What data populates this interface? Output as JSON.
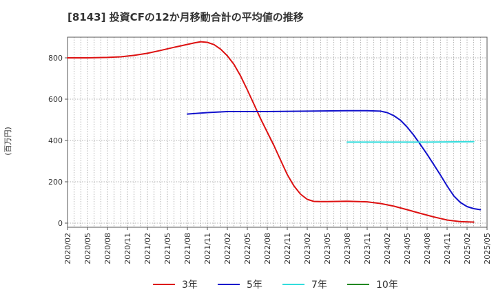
{
  "chart_data": {
    "type": "line",
    "title": "[8143]  投資CFの12か月移動合計の平均値の推移",
    "ylabel": "(百万円)",
    "xlabel": "",
    "ylim": [
      -20,
      900
    ],
    "yticks": [
      0,
      200,
      400,
      600,
      800
    ],
    "x_ticks": [
      "2020/02",
      "2020/05",
      "2020/08",
      "2020/11",
      "2021/02",
      "2021/05",
      "2021/08",
      "2021/11",
      "2022/02",
      "2022/05",
      "2022/08",
      "2022/11",
      "2023/02",
      "2023/05",
      "2023/08",
      "2023/11",
      "2024/02",
      "2024/05",
      "2024/08",
      "2024/11",
      "2025/02",
      "2025/05"
    ],
    "grid": true,
    "legend_position": "bottom",
    "series": [
      {
        "name": "3年",
        "color": "#dd1111",
        "points": [
          [
            "2020/02",
            800
          ],
          [
            "2020/05",
            800
          ],
          [
            "2020/08",
            802
          ],
          [
            "2020/10",
            805
          ],
          [
            "2020/12",
            812
          ],
          [
            "2021/02",
            822
          ],
          [
            "2021/04",
            836
          ],
          [
            "2021/06",
            851
          ],
          [
            "2021/08",
            865
          ],
          [
            "2021/09",
            872
          ],
          [
            "2021/10",
            878
          ],
          [
            "2021/11",
            875
          ],
          [
            "2021/12",
            864
          ],
          [
            "2022/01",
            842
          ],
          [
            "2022/02",
            810
          ],
          [
            "2022/03",
            768
          ],
          [
            "2022/04",
            712
          ],
          [
            "2022/05",
            645
          ],
          [
            "2022/06",
            575
          ],
          [
            "2022/07",
            505
          ],
          [
            "2022/08",
            440
          ],
          [
            "2022/09",
            375
          ],
          [
            "2022/10",
            305
          ],
          [
            "2022/11",
            235
          ],
          [
            "2022/12",
            180
          ],
          [
            "2023/01",
            140
          ],
          [
            "2023/02",
            115
          ],
          [
            "2023/03",
            105
          ],
          [
            "2023/04",
            104
          ],
          [
            "2023/05",
            104
          ],
          [
            "2023/08",
            106
          ],
          [
            "2023/11",
            103
          ],
          [
            "2024/01",
            95
          ],
          [
            "2024/03",
            82
          ],
          [
            "2024/05",
            65
          ],
          [
            "2024/07",
            47
          ],
          [
            "2024/09",
            30
          ],
          [
            "2024/11",
            15
          ],
          [
            "2025/01",
            7
          ],
          [
            "2025/03",
            5
          ]
        ]
      },
      {
        "name": "5年",
        "color": "#1111cc",
        "points": [
          [
            "2021/08",
            528
          ],
          [
            "2021/11",
            535
          ],
          [
            "2022/02",
            540
          ],
          [
            "2022/08",
            540
          ],
          [
            "2023/02",
            542
          ],
          [
            "2023/08",
            544
          ],
          [
            "2023/11",
            544
          ],
          [
            "2024/01",
            542
          ],
          [
            "2024/02",
            535
          ],
          [
            "2024/03",
            520
          ],
          [
            "2024/04",
            498
          ],
          [
            "2024/05",
            465
          ],
          [
            "2024/06",
            425
          ],
          [
            "2024/07",
            380
          ],
          [
            "2024/08",
            333
          ],
          [
            "2024/09",
            283
          ],
          [
            "2024/10",
            233
          ],
          [
            "2024/11",
            180
          ],
          [
            "2024/12",
            132
          ],
          [
            "2025/01",
            100
          ],
          [
            "2025/02",
            80
          ],
          [
            "2025/03",
            70
          ],
          [
            "2025/04",
            65
          ]
        ]
      },
      {
        "name": "7年",
        "color": "#33dddd",
        "points": [
          [
            "2023/08",
            392
          ],
          [
            "2024/08",
            392
          ],
          [
            "2025/03",
            394
          ]
        ]
      },
      {
        "name": "10年",
        "color": "#228822",
        "points": []
      }
    ]
  }
}
